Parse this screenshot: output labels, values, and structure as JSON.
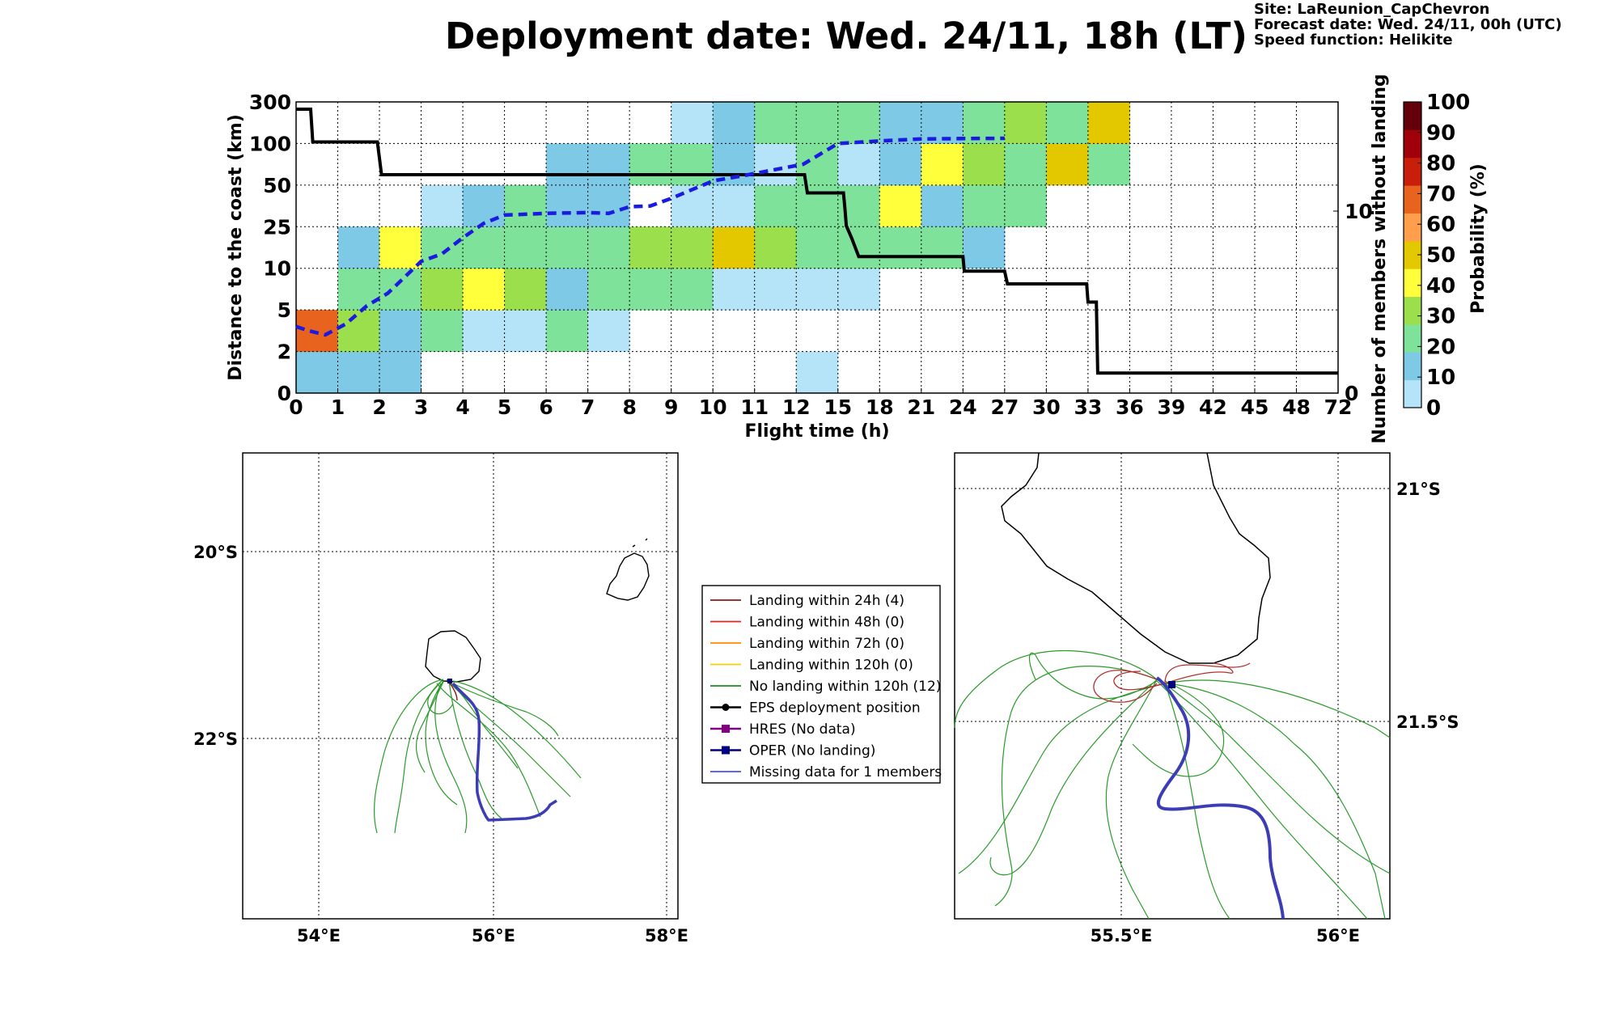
{
  "header": {
    "title": "Deployment date: Wed. 24/11, 18h (LT)",
    "site": "Site: LaReunion_CapChevron",
    "forecast": "Forecast date: Wed. 24/11, 00h (UTC)",
    "speed": "Speed function: Helikite"
  },
  "chart_data": [
    {
      "type": "heatmap",
      "xlabel": "Flight time (h)",
      "ylabel": "Distance to the coast (km)",
      "y2label": "Number of members without landing",
      "x_ticks": [
        "0",
        "1",
        "2",
        "3",
        "4",
        "5",
        "6",
        "7",
        "8",
        "9",
        "10",
        "11",
        "12",
        "15",
        "18",
        "21",
        "24",
        "27",
        "30",
        "33",
        "36",
        "39",
        "42",
        "45",
        "48",
        "72"
      ],
      "y_ticks": [
        "0",
        "2",
        "5",
        "10",
        "25",
        "50",
        "100",
        "300"
      ],
      "y2_ticks": [
        "0",
        "10"
      ],
      "y2_range": [
        0,
        16
      ],
      "grid": true,
      "colorbar": {
        "label": "Probability (%)",
        "ticks": [
          "0",
          "10",
          "20",
          "30",
          "40",
          "50",
          "60",
          "70",
          "80",
          "90",
          "100"
        ],
        "colors": [
          "#b5e4f8",
          "#7ecae6",
          "#7ee29a",
          "#9be04c",
          "#ffff3c",
          "#e3c800",
          "#ff9e4c",
          "#e8641e",
          "#c81e0a",
          "#a0000a",
          "#64000a"
        ]
      },
      "cells": [
        {
          "x": 0,
          "y": 0,
          "p": 10
        },
        {
          "x": 1,
          "y": 0,
          "p": 10
        },
        {
          "x": 2,
          "y": 0,
          "p": 10
        },
        {
          "x": 12,
          "y": 0,
          "p": 0
        },
        {
          "x": 0,
          "y": 1,
          "p": 70
        },
        {
          "x": 1,
          "y": 1,
          "p": 30
        },
        {
          "x": 2,
          "y": 1,
          "p": 10
        },
        {
          "x": 3,
          "y": 1,
          "p": 20
        },
        {
          "x": 4,
          "y": 1,
          "p": 0
        },
        {
          "x": 5,
          "y": 1,
          "p": 0
        },
        {
          "x": 6,
          "y": 1,
          "p": 20
        },
        {
          "x": 7,
          "y": 1,
          "p": 0
        },
        {
          "x": 1,
          "y": 2,
          "p": 20
        },
        {
          "x": 2,
          "y": 2,
          "p": 20
        },
        {
          "x": 3,
          "y": 2,
          "p": 30
        },
        {
          "x": 4,
          "y": 2,
          "p": 40
        },
        {
          "x": 5,
          "y": 2,
          "p": 30
        },
        {
          "x": 6,
          "y": 2,
          "p": 10
        },
        {
          "x": 7,
          "y": 2,
          "p": 20
        },
        {
          "x": 8,
          "y": 2,
          "p": 20
        },
        {
          "x": 9,
          "y": 2,
          "p": 20
        },
        {
          "x": 10,
          "y": 2,
          "p": 0
        },
        {
          "x": 11,
          "y": 2,
          "p": 0
        },
        {
          "x": 12,
          "y": 2,
          "p": 0
        },
        {
          "x": 13,
          "y": 2,
          "p": 0
        },
        {
          "x": 1,
          "y": 3,
          "p": 10
        },
        {
          "x": 2,
          "y": 3,
          "p": 40
        },
        {
          "x": 3,
          "y": 3,
          "p": 20
        },
        {
          "x": 4,
          "y": 3,
          "p": 20
        },
        {
          "x": 5,
          "y": 3,
          "p": 20
        },
        {
          "x": 6,
          "y": 3,
          "p": 20
        },
        {
          "x": 7,
          "y": 3,
          "p": 20
        },
        {
          "x": 8,
          "y": 3,
          "p": 30
        },
        {
          "x": 9,
          "y": 3,
          "p": 30
        },
        {
          "x": 10,
          "y": 3,
          "p": 50
        },
        {
          "x": 11,
          "y": 3,
          "p": 30
        },
        {
          "x": 12,
          "y": 3,
          "p": 20
        },
        {
          "x": 13,
          "y": 3,
          "p": 20
        },
        {
          "x": 14,
          "y": 3,
          "p": 20
        },
        {
          "x": 15,
          "y": 3,
          "p": 20
        },
        {
          "x": 16,
          "y": 3,
          "p": 10
        },
        {
          "x": 3,
          "y": 4,
          "p": 0
        },
        {
          "x": 4,
          "y": 4,
          "p": 10
        },
        {
          "x": 5,
          "y": 4,
          "p": 20
        },
        {
          "x": 6,
          "y": 4,
          "p": 10
        },
        {
          "x": 7,
          "y": 4,
          "p": 10
        },
        {
          "x": 9,
          "y": 4,
          "p": 0
        },
        {
          "x": 10,
          "y": 4,
          "p": 0
        },
        {
          "x": 11,
          "y": 4,
          "p": 20
        },
        {
          "x": 12,
          "y": 4,
          "p": 20
        },
        {
          "x": 13,
          "y": 4,
          "p": 20
        },
        {
          "x": 14,
          "y": 4,
          "p": 40
        },
        {
          "x": 15,
          "y": 4,
          "p": 10
        },
        {
          "x": 16,
          "y": 4,
          "p": 20
        },
        {
          "x": 17,
          "y": 4,
          "p": 20
        },
        {
          "x": 6,
          "y": 5,
          "p": 10
        },
        {
          "x": 7,
          "y": 5,
          "p": 10
        },
        {
          "x": 8,
          "y": 5,
          "p": 20
        },
        {
          "x": 9,
          "y": 5,
          "p": 20
        },
        {
          "x": 10,
          "y": 5,
          "p": 10
        },
        {
          "x": 11,
          "y": 5,
          "p": 0
        },
        {
          "x": 12,
          "y": 5,
          "p": 20
        },
        {
          "x": 13,
          "y": 5,
          "p": 0
        },
        {
          "x": 14,
          "y": 5,
          "p": 10
        },
        {
          "x": 15,
          "y": 5,
          "p": 40
        },
        {
          "x": 16,
          "y": 5,
          "p": 30
        },
        {
          "x": 17,
          "y": 5,
          "p": 20
        },
        {
          "x": 18,
          "y": 5,
          "p": 50
        },
        {
          "x": 19,
          "y": 5,
          "p": 20
        },
        {
          "x": 9,
          "y": 6,
          "p": 0
        },
        {
          "x": 10,
          "y": 6,
          "p": 10
        },
        {
          "x": 11,
          "y": 6,
          "p": 20
        },
        {
          "x": 12,
          "y": 6,
          "p": 20
        },
        {
          "x": 13,
          "y": 6,
          "p": 20
        },
        {
          "x": 14,
          "y": 6,
          "p": 10
        },
        {
          "x": 15,
          "y": 6,
          "p": 10
        },
        {
          "x": 16,
          "y": 6,
          "p": 20
        },
        {
          "x": 17,
          "y": 6,
          "p": 30
        },
        {
          "x": 18,
          "y": 6,
          "p": 20
        },
        {
          "x": 19,
          "y": 6,
          "p": 50
        }
      ],
      "members_without_landing": {
        "name": "",
        "x": [
          0,
          0.35,
          0.4,
          1.95,
          2.05,
          12.6,
          12.8,
          15.4,
          15.5,
          15.6,
          16.0,
          16.5,
          24.0,
          24.1,
          27.0,
          27.2,
          32.9,
          33.0,
          33.6,
          33.7,
          72
        ],
        "y": [
          15.6,
          15.6,
          13.8,
          13.8,
          12.0,
          12.0,
          11.0,
          11.0,
          10.2,
          9.2,
          8.5,
          7.5,
          7.5,
          6.7,
          6.7,
          6.0,
          6.0,
          5.0,
          5.0,
          1.1,
          1.1
        ]
      },
      "median_distance": {
        "name": "",
        "x": [
          0,
          0.3,
          0.7,
          1.2,
          1.7,
          2.2,
          3.0,
          3.5,
          4.0,
          4.5,
          5.0,
          6.0,
          7.0,
          7.5,
          8.0,
          8.5,
          9.0,
          10.0,
          10.8,
          12.5,
          15,
          18,
          21,
          24,
          27
        ],
        "y": [
          3.8,
          3.5,
          3.2,
          4.0,
          5.5,
          7.0,
          12.5,
          15.2,
          21.0,
          27.0,
          32.0,
          33.0,
          33.5,
          33.0,
          37.0,
          37.5,
          42.0,
          55.0,
          62.0,
          75.0,
          100,
          112,
          122,
          124,
          125
        ]
      }
    }
  ],
  "maps": {
    "left": {
      "lon_ticks": [
        "54°E",
        "56°E",
        "58°E"
      ],
      "lat_ticks": [
        "20°S",
        "22°S"
      ]
    },
    "right": {
      "lon_ticks": [
        "55.5°E",
        "56°E"
      ],
      "lat_ticks": [
        "21°S",
        "21.5°S"
      ]
    }
  },
  "legend": {
    "items": [
      {
        "label": "Landing within 24h (4)",
        "color": "#8b1a1a",
        "marker": "none"
      },
      {
        "label": "Landing within 48h (0)",
        "color": "#e8201a",
        "marker": "none"
      },
      {
        "label": "Landing within 72h (0)",
        "color": "#ff8c00",
        "marker": "none"
      },
      {
        "label": "Landing within 120h (0)",
        "color": "#f0d000",
        "marker": "none"
      },
      {
        "label": "No landing within 120h (12)",
        "color": "#1e8c1e",
        "marker": "none"
      },
      {
        "label": "EPS deployment position",
        "color": "#000000",
        "marker": "circle"
      },
      {
        "label": "HRES (No data)",
        "color": "#800080",
        "marker": "square"
      },
      {
        "label": "OPER (No landing)",
        "color": "#000080",
        "marker": "square"
      },
      {
        "label": "Missing data for 1 members",
        "color": "#4a50e8",
        "marker": "none"
      }
    ]
  }
}
